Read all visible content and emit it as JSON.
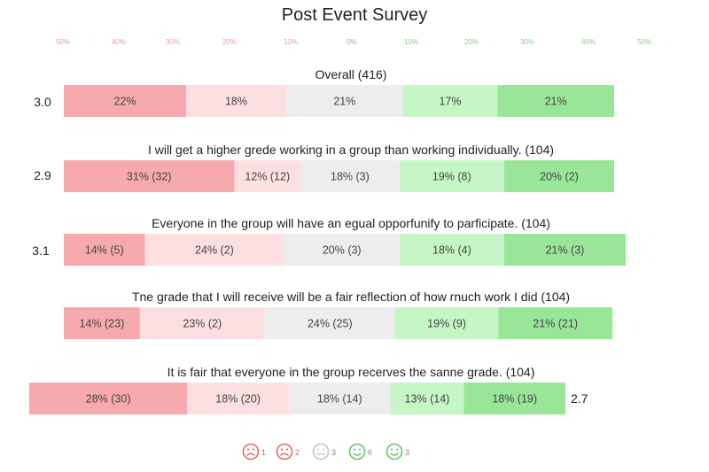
{
  "chart_data": {
    "type": "bar",
    "title": "Post Event Survey",
    "scale_labels": [
      "50%",
      "40%",
      "30%",
      "20%",
      "10%",
      "0%",
      "10%",
      "20%",
      "30%",
      "40%",
      "50%"
    ],
    "segment_colors": [
      "#f6aaad",
      "#fcdfe0",
      "#ededed",
      "#c5f6c5",
      "#99e699"
    ],
    "series": [
      {
        "name": "Overall (416)",
        "score": "3.0",
        "values": [
          22,
          18,
          21,
          17,
          21
        ],
        "labels": [
          "22%",
          "18%",
          "21%",
          "17%",
          "21%"
        ]
      },
      {
        "name": "I will get a higher grede working in a group than working individually. (104)",
        "score": "2.9",
        "values": [
          31,
          12,
          18,
          19,
          20
        ],
        "labels": [
          "31% (32)",
          "12% (12)",
          "18% (3)",
          "19% (8)",
          "20% (2)"
        ]
      },
      {
        "name": "Everyone in the group will have an egual opporfunify to parficipate. (104)",
        "score": "3.1",
        "values": [
          14,
          24,
          20,
          18,
          21
        ],
        "labels": [
          "14% (5)",
          "24% (2)",
          "20% (3)",
          "18% (4)",
          "21% (3)"
        ]
      },
      {
        "name": "Tne grade that I will receive will be a fair reflection of how rnuch work I did (104)",
        "score": "",
        "values": [
          14,
          23,
          24,
          19,
          21
        ],
        "labels": [
          "14% (23)",
          "23% (2)",
          "24% (25)",
          "19% (9)",
          "21% (21)"
        ]
      },
      {
        "name": "It is fair that everyone in the group recerves the sanne grade. (104)",
        "score": "2.7",
        "values": [
          28,
          18,
          18,
          13,
          18
        ],
        "labels": [
          "28% (30)",
          "18% (20)",
          "18% (14)",
          "13% (14)",
          "18% (19)"
        ]
      }
    ],
    "legend": {
      "placement": "bottom",
      "items": [
        {
          "icon": "very-unhappy-face-icon",
          "count": "1",
          "color": "#e06c66"
        },
        {
          "icon": "unhappy-face-icon",
          "count": "2",
          "color": "#e06c66"
        },
        {
          "icon": "neutral-face-icon",
          "count": "3",
          "color": "#c4c4c4"
        },
        {
          "icon": "happy-face-icon",
          "count": "6",
          "color": "#6cc26c"
        },
        {
          "icon": "very-happy-face-icon",
          "count": "3",
          "color": "#6cc26c"
        }
      ]
    }
  }
}
